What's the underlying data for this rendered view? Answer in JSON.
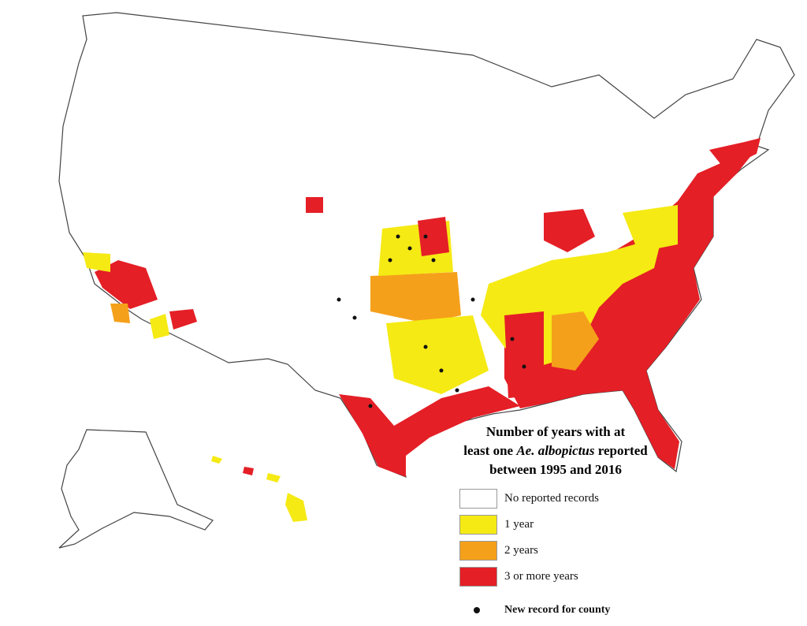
{
  "title": {
    "lines": [
      [
        "Number of years with at"
      ],
      [
        "least one",
        "Ae. albopictus",
        "reported"
      ],
      [
        "between 1995 and 2016"
      ]
    ]
  },
  "legend": {
    "items": [
      {
        "label": "No reported records",
        "color": "#ffffff"
      },
      {
        "label": "1 year",
        "color": "#f5ea14"
      },
      {
        "label": "2 years",
        "color": "#f5a01a"
      },
      {
        "label": "3 or more years",
        "color": "#e41f26"
      }
    ],
    "marker": {
      "label": "New record for county"
    }
  }
}
